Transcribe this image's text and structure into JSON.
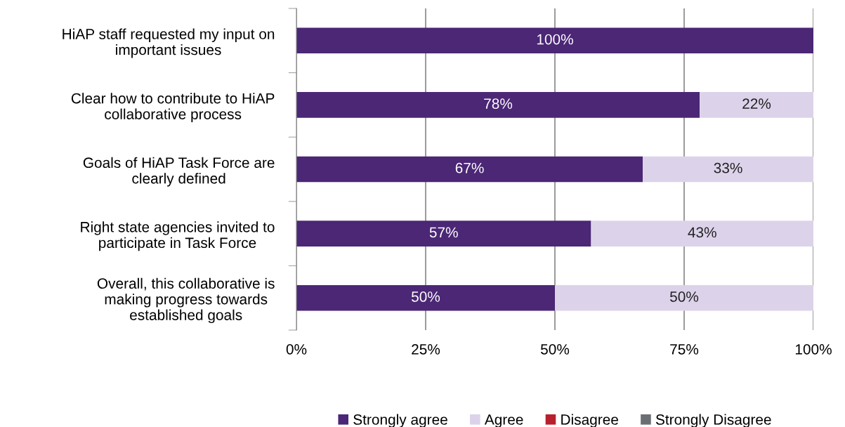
{
  "chart_data": {
    "type": "bar",
    "orientation": "horizontal",
    "stacked": true,
    "categories": [
      "HiAP staff requested my input on\nimportant issues",
      "Clear how to contribute to HiAP\ncollaborative process",
      "Goals of HiAP Task Force are\nclearly defined",
      "Right state agencies invited to\nparticipate in Task Force",
      "Overall, this collaborative is\nmaking progress towards\nestablished goals"
    ],
    "series": [
      {
        "name": "Strongly agree",
        "color": "#4b2776",
        "values": [
          100,
          78,
          67,
          57,
          50
        ],
        "value_labels": [
          "100%",
          "78%",
          "67%",
          "57%",
          "50%"
        ]
      },
      {
        "name": "Agree",
        "color": "#dcd3ea",
        "values": [
          0,
          22,
          33,
          43,
          50
        ],
        "value_labels": [
          null,
          "22%",
          "33%",
          "43%",
          "50%"
        ]
      },
      {
        "name": "Disagree",
        "color": "#b8202e",
        "values": [
          0,
          0,
          0,
          0,
          0
        ]
      },
      {
        "name": "Strongly Disagree",
        "color": "#6b6e72",
        "values": [
          0,
          0,
          0,
          0,
          0
        ]
      }
    ],
    "xlim": [
      0,
      100
    ],
    "xticks": [
      {
        "value": 0,
        "label": "0%"
      },
      {
        "value": 25,
        "label": "25%"
      },
      {
        "value": 50,
        "label": "50%"
      },
      {
        "value": 75,
        "label": "75%"
      },
      {
        "value": 100,
        "label": "100%"
      }
    ],
    "grid": "x",
    "legend": "bottom"
  }
}
